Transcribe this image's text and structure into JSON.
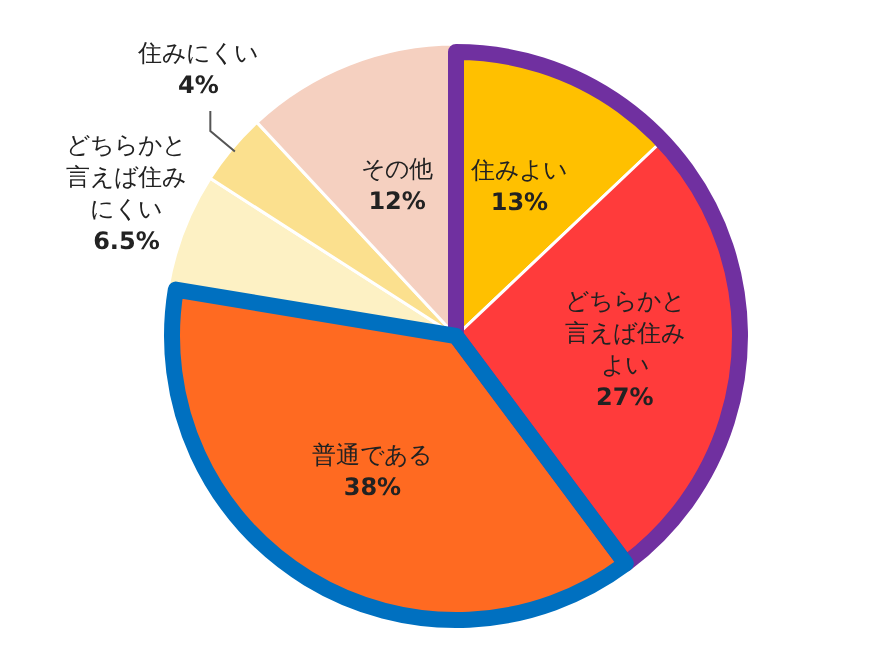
{
  "chart_data": {
    "type": "pie",
    "categories": [
      "住みよい",
      "どちらかと言えば住みよい",
      "普通である",
      "どちらかと言えば住みにくい",
      "住みにくい",
      "その他"
    ],
    "values": [
      13,
      27,
      38,
      6.5,
      4,
      12
    ],
    "value_labels": [
      "13%",
      "27%",
      "38%",
      "6.5%",
      "4%",
      "12%"
    ],
    "colors": [
      "#ffc000",
      "#ff3b3b",
      "#ff6a21",
      "#fdf1c4",
      "#fbe08e",
      "#f5d0c0"
    ],
    "legend": false
  }
}
